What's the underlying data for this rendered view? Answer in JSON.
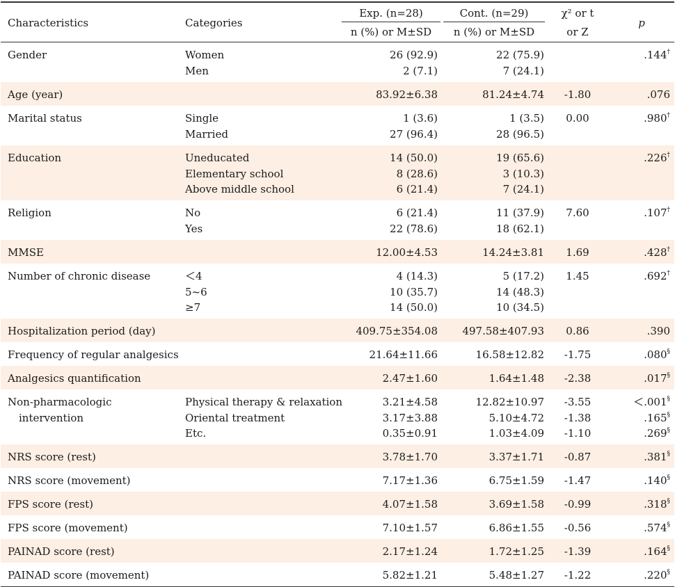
{
  "header": {
    "characteristics": "Characteristics",
    "categories": "Categories",
    "exp": "Exp. (n=28)",
    "cont": "Cont. (n=29)",
    "exp_sub": "n (%) or M±SD",
    "cont_sub": "n (%) or M±SD",
    "stat_l1": "χ² or t",
    "stat_l2": "or Z",
    "p": "p"
  },
  "rows": [
    {
      "char": [
        "Gender"
      ],
      "cats": [
        "Women",
        "Men"
      ],
      "exp": [
        "26 (92.9)",
        "2 (7.1)"
      ],
      "cont": [
        "22 (75.9)",
        "7 (24.1)"
      ],
      "stat": [
        ""
      ],
      "p": [
        ".144"
      ],
      "sup": [
        "†"
      ]
    },
    {
      "char": [
        "Age (year)"
      ],
      "cats": [
        ""
      ],
      "exp": [
        "83.92±6.38"
      ],
      "cont": [
        "81.24±4.74"
      ],
      "stat": [
        "-1.80"
      ],
      "p": [
        ".076"
      ],
      "sup": [
        ""
      ]
    },
    {
      "char": [
        "Marital status"
      ],
      "cats": [
        "Single",
        "Married"
      ],
      "exp": [
        "1 (3.6)",
        "27 (96.4)"
      ],
      "cont": [
        "1 (3.5)",
        "28 (96.5)"
      ],
      "stat": [
        "0.00"
      ],
      "p": [
        ".980"
      ],
      "sup": [
        "†"
      ]
    },
    {
      "char": [
        "Education"
      ],
      "cats": [
        "Uneducated",
        "Elementary school",
        "Above middle school"
      ],
      "exp": [
        "14 (50.0)",
        "8 (28.6)",
        "6 (21.4)"
      ],
      "cont": [
        "19 (65.6)",
        "3 (10.3)",
        "7 (24.1)"
      ],
      "stat": [
        ""
      ],
      "p": [
        ".226"
      ],
      "sup": [
        "†"
      ]
    },
    {
      "char": [
        "Religion"
      ],
      "cats": [
        "No",
        "Yes"
      ],
      "exp": [
        "6 (21.4)",
        "22 (78.6)"
      ],
      "cont": [
        "11 (37.9)",
        "18 (62.1)"
      ],
      "stat": [
        "7.60"
      ],
      "p": [
        ".107"
      ],
      "sup": [
        "†"
      ]
    },
    {
      "char": [
        "MMSE"
      ],
      "cats": [
        ""
      ],
      "exp": [
        "12.00±4.53"
      ],
      "cont": [
        "14.24±3.81"
      ],
      "stat": [
        "1.69"
      ],
      "p": [
        ".428"
      ],
      "sup": [
        "†"
      ]
    },
    {
      "char": [
        "Number of chronic disease"
      ],
      "cats": [
        "＜4",
        "5~6",
        "≥7"
      ],
      "exp": [
        "4 (14.3)",
        "10 (35.7)",
        "14 (50.0)"
      ],
      "cont": [
        "5 (17.2)",
        "14 (48.3)",
        "10 (34.5)"
      ],
      "stat": [
        "1.45"
      ],
      "p": [
        ".692"
      ],
      "sup": [
        "†"
      ]
    },
    {
      "char": [
        "Hospitalization period (day)"
      ],
      "cats": [
        ""
      ],
      "exp": [
        "409.75±354.08"
      ],
      "cont": [
        "497.58±407.93"
      ],
      "stat": [
        "0.86"
      ],
      "p": [
        ".390"
      ],
      "sup": [
        ""
      ]
    },
    {
      "char": [
        "Frequency of regular analgesics"
      ],
      "cats": [
        ""
      ],
      "exp": [
        "21.64±11.66"
      ],
      "cont": [
        "16.58±12.82"
      ],
      "stat": [
        "-1.75"
      ],
      "p": [
        ".080"
      ],
      "sup": [
        "§"
      ]
    },
    {
      "char": [
        "Analgesics quantification"
      ],
      "cats": [
        ""
      ],
      "exp": [
        "2.47±1.60"
      ],
      "cont": [
        "1.64±1.48"
      ],
      "stat": [
        "-2.38"
      ],
      "p": [
        ".017"
      ],
      "sup": [
        "§"
      ]
    },
    {
      "char": [
        "Non-pharmacologic",
        "intervention"
      ],
      "cats": [
        "Physical therapy & relaxation",
        "Oriental treatment",
        "Etc."
      ],
      "exp": [
        "3.21±4.58",
        "3.17±3.88",
        "0.35±0.91"
      ],
      "cont": [
        "12.82±10.97",
        "5.10±4.72",
        "1.03±4.09"
      ],
      "stat": [
        "-3.55",
        "-1.38",
        "-1.10"
      ],
      "p": [
        "＜.001",
        ".165",
        ".269"
      ],
      "sup": [
        "§",
        "§",
        "§"
      ]
    },
    {
      "char": [
        "NRS score (rest)"
      ],
      "cats": [
        ""
      ],
      "exp": [
        "3.78±1.70"
      ],
      "cont": [
        "3.37±1.71"
      ],
      "stat": [
        "-0.87"
      ],
      "p": [
        ".381"
      ],
      "sup": [
        "§"
      ]
    },
    {
      "char": [
        "NRS score (movement)"
      ],
      "cats": [
        ""
      ],
      "exp": [
        "7.17±1.36"
      ],
      "cont": [
        "6.75±1.59"
      ],
      "stat": [
        "-1.47"
      ],
      "p": [
        ".140"
      ],
      "sup": [
        "§"
      ]
    },
    {
      "char": [
        "FPS score (rest)"
      ],
      "cats": [
        ""
      ],
      "exp": [
        "4.07±1.58"
      ],
      "cont": [
        "3.69±1.58"
      ],
      "stat": [
        "-0.99"
      ],
      "p": [
        ".318"
      ],
      "sup": [
        "§"
      ]
    },
    {
      "char": [
        "FPS score (movement)"
      ],
      "cats": [
        ""
      ],
      "exp": [
        "7.10±1.57"
      ],
      "cont": [
        "6.86±1.55"
      ],
      "stat": [
        "-0.56"
      ],
      "p": [
        ".574"
      ],
      "sup": [
        "§"
      ]
    },
    {
      "char": [
        "PAINAD score (rest)"
      ],
      "cats": [
        ""
      ],
      "exp": [
        "2.17±1.24"
      ],
      "cont": [
        "1.72±1.25"
      ],
      "stat": [
        "-1.39"
      ],
      "p": [
        ".164"
      ],
      "sup": [
        "§"
      ]
    },
    {
      "char": [
        "PAINAD score (movement)"
      ],
      "cats": [
        ""
      ],
      "exp": [
        "5.82±1.21"
      ],
      "cont": [
        "5.48±1.27"
      ],
      "stat": [
        "-1.22"
      ],
      "p": [
        ".220"
      ],
      "sup": [
        "§"
      ]
    }
  ]
}
